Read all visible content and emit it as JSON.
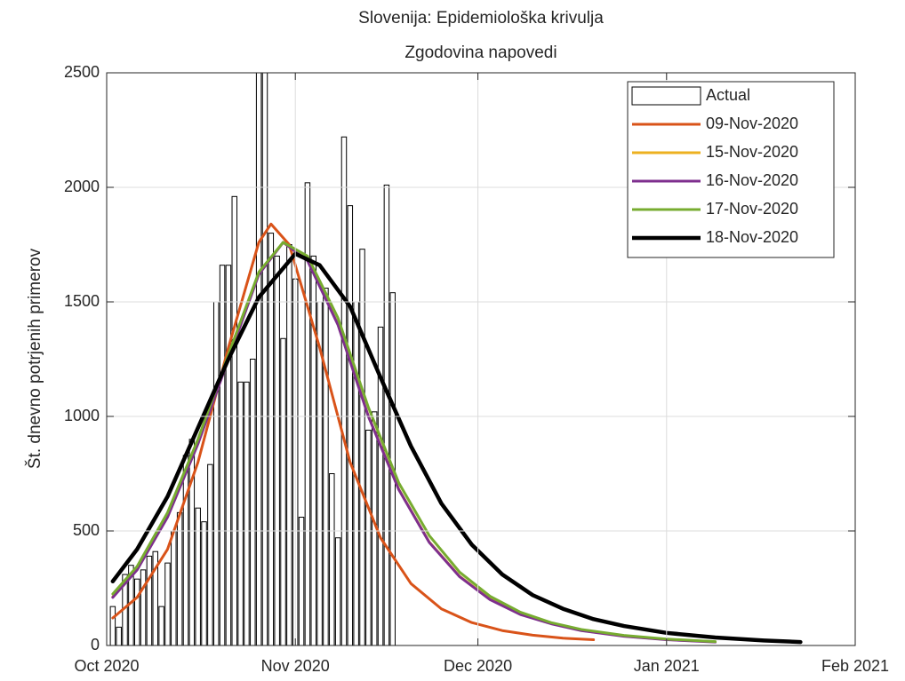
{
  "chart_data": {
    "type": "bar",
    "title": "Slovenija: Epidemiološka krivulja",
    "subtitle": "Zgodovina napovedi",
    "y_label": "Št. dnevno potrjenih primerov",
    "xlim": [
      0,
      123
    ],
    "xticks": [
      {
        "value": 0,
        "label": "Oct 2020"
      },
      {
        "value": 31,
        "label": "Nov 2020"
      },
      {
        "value": 61,
        "label": "Dec 2020"
      },
      {
        "value": 92,
        "label": "Jan 2021"
      },
      {
        "value": 123,
        "label": "Feb 2021"
      }
    ],
    "ylim": [
      0,
      2500
    ],
    "yticks": [
      0,
      500,
      1000,
      1500,
      2000,
      2500
    ],
    "grid": true,
    "legend": "northeast",
    "series": [
      {
        "name": "Actual",
        "type": "bar",
        "color": "#ffffff",
        "x": [
          1,
          2,
          3,
          4,
          5,
          6,
          7,
          8,
          9,
          10,
          11,
          12,
          13,
          14,
          15,
          16,
          17,
          18,
          19,
          20,
          21,
          22,
          23,
          24,
          25,
          26,
          27,
          28,
          29,
          30,
          31,
          32,
          33,
          34,
          35,
          36,
          37,
          38,
          39,
          40,
          41,
          42,
          43,
          44,
          45,
          46,
          47
        ],
        "values": [
          170,
          80,
          310,
          350,
          290,
          330,
          390,
          410,
          170,
          360,
          500,
          580,
          830,
          900,
          600,
          540,
          790,
          1500,
          1660,
          1660,
          1960,
          1150,
          1150,
          1250,
          2600,
          2550,
          1800,
          1700,
          1340,
          1750,
          1600,
          560,
          2020,
          1700,
          1500,
          1560,
          750,
          470,
          2220,
          1920,
          1500,
          1730,
          940,
          1020,
          1390,
          2010,
          1540
        ]
      },
      {
        "name": "09-Nov-2020",
        "type": "line",
        "color": "#d95319",
        "x": [
          1,
          5,
          10,
          15,
          20,
          25,
          27,
          30,
          35,
          40,
          45,
          50,
          55,
          60,
          65,
          70,
          75,
          80
        ],
        "values": [
          120,
          210,
          420,
          800,
          1300,
          1760,
          1840,
          1750,
          1300,
          800,
          470,
          270,
          160,
          100,
          65,
          45,
          32,
          25
        ]
      },
      {
        "name": "15-Nov-2020",
        "type": "line",
        "color": "#edb120",
        "x": [
          1,
          5,
          10,
          15,
          20,
          25,
          29,
          33,
          38,
          43,
          48,
          53,
          58,
          63,
          68,
          73,
          78,
          85,
          92,
          100
        ],
        "values": [
          212,
          332,
          562,
          882,
          1252,
          1622,
          1760,
          1682,
          1402,
          1002,
          682,
          452,
          302,
          202,
          137,
          96,
          66,
          41,
          26,
          16
        ]
      },
      {
        "name": "16-Nov-2020",
        "type": "line",
        "color": "#7e2f8e",
        "x": [
          1,
          5,
          10,
          15,
          20,
          25,
          29,
          33,
          38,
          43,
          48,
          53,
          58,
          63,
          68,
          73,
          78,
          85,
          92,
          100
        ],
        "values": [
          210,
          330,
          560,
          880,
          1250,
          1620,
          1760,
          1680,
          1400,
          1000,
          680,
          450,
          300,
          200,
          135,
          95,
          65,
          40,
          25,
          15
        ]
      },
      {
        "name": "17-Nov-2020",
        "type": "line",
        "color": "#77ac30",
        "x": [
          1,
          5,
          10,
          15,
          20,
          25,
          29,
          33,
          38,
          43,
          48,
          53,
          58,
          63,
          68,
          73,
          78,
          85,
          92,
          100
        ],
        "values": [
          225,
          345,
          580,
          900,
          1270,
          1630,
          1760,
          1700,
          1430,
          1040,
          710,
          480,
          320,
          215,
          145,
          100,
          70,
          44,
          28,
          17
        ]
      },
      {
        "name": "18-Nov-2020",
        "type": "line",
        "color": "#000000",
        "x": [
          1,
          5,
          10,
          15,
          20,
          25,
          31,
          35,
          40,
          45,
          50,
          55,
          60,
          65,
          70,
          75,
          80,
          85,
          92,
          100,
          108,
          114
        ],
        "values": [
          280,
          420,
          650,
          950,
          1250,
          1520,
          1710,
          1660,
          1480,
          1170,
          870,
          620,
          440,
          310,
          220,
          160,
          115,
          85,
          55,
          35,
          22,
          15
        ]
      }
    ]
  }
}
